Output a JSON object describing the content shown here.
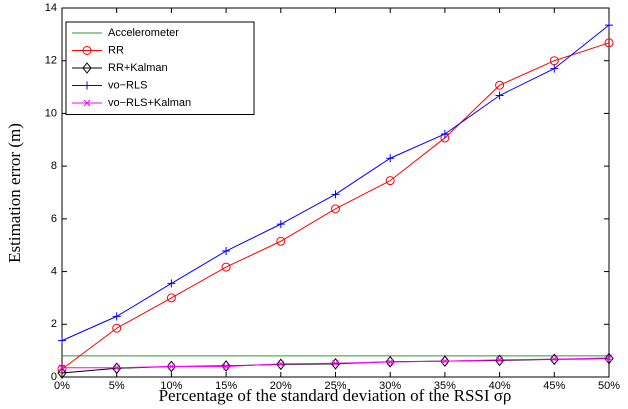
{
  "chart_data": {
    "type": "line",
    "x_label": "Percentage of the standard deviation of the RSSI σρ",
    "y_label": "Estimation error (m)",
    "x": [
      0,
      5,
      10,
      15,
      20,
      25,
      30,
      35,
      40,
      45,
      50
    ],
    "xlim": [
      0,
      50
    ],
    "xticks": [
      {
        "value": 0,
        "label": "0%"
      },
      {
        "value": 5,
        "label": "5%"
      },
      {
        "value": 10,
        "label": "10%"
      },
      {
        "value": 15,
        "label": "15%"
      },
      {
        "value": 20,
        "label": "20%"
      },
      {
        "value": 25,
        "label": "25%"
      },
      {
        "value": 30,
        "label": "30%"
      },
      {
        "value": 35,
        "label": "35%"
      },
      {
        "value": 40,
        "label": "40%"
      },
      {
        "value": 45,
        "label": "45%"
      },
      {
        "value": 50,
        "label": "50%"
      }
    ],
    "ylim": [
      0,
      14
    ],
    "yticks": [
      0,
      2,
      4,
      6,
      8,
      10,
      12,
      14
    ],
    "legend": "upper left",
    "series": [
      {
        "name": "Accelerometer",
        "color": "#2e9a2e",
        "marker": "none",
        "values": [
          0.8,
          0.8,
          0.8,
          0.8,
          0.8,
          0.8,
          0.8,
          0.8,
          0.8,
          0.8,
          0.8
        ]
      },
      {
        "name": "RR",
        "color": "#ff0000",
        "marker": "circle",
        "values": [
          0.3,
          1.85,
          3.0,
          4.17,
          5.15,
          6.38,
          7.45,
          9.07,
          11.07,
          12.0,
          12.68
        ]
      },
      {
        "name": "RR+Kalman",
        "color": "#000000",
        "marker": "diamond",
        "values": [
          0.15,
          0.33,
          0.4,
          0.42,
          0.48,
          0.5,
          0.58,
          0.6,
          0.63,
          0.67,
          0.7
        ]
      },
      {
        "name": "vo−RLS",
        "color": "#0000ff",
        "marker": "plus",
        "values": [
          1.38,
          2.3,
          3.55,
          4.78,
          5.8,
          6.93,
          8.3,
          9.22,
          10.68,
          11.7,
          13.35
        ]
      },
      {
        "name": "vo−RLS+Kalman",
        "color": "#ff00ff",
        "marker": "x",
        "values": [
          0.35,
          0.35,
          0.4,
          0.4,
          0.5,
          0.52,
          0.57,
          0.6,
          0.65,
          0.68,
          0.72
        ]
      }
    ]
  }
}
